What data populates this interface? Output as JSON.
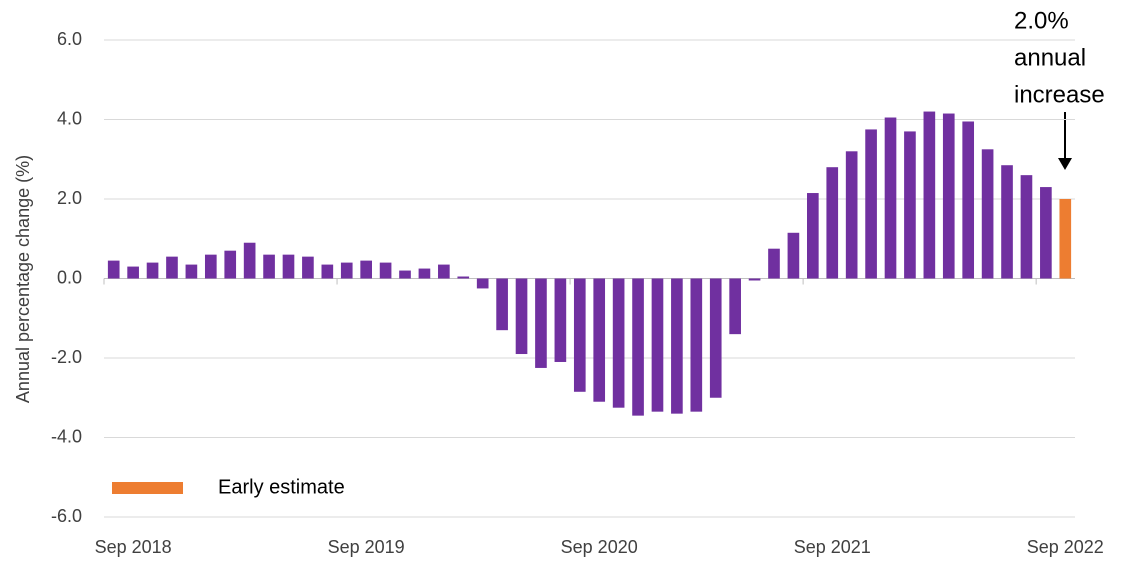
{
  "chart_data": {
    "type": "bar",
    "y_label": "Annual percentage change (%)",
    "categories": [
      null,
      "Sep 2018",
      null,
      null,
      null,
      null,
      null,
      null,
      null,
      null,
      null,
      null,
      null,
      "Sep 2019",
      null,
      null,
      null,
      null,
      null,
      null,
      null,
      null,
      null,
      null,
      null,
      "Sep 2020",
      null,
      null,
      null,
      null,
      null,
      null,
      null,
      null,
      null,
      null,
      null,
      "Sep 2021",
      null,
      null,
      null,
      null,
      null,
      null,
      null,
      null,
      null,
      null,
      null,
      "Sep 2022"
    ],
    "series": [
      {
        "color": "#7030a0",
        "values": [
          0.45,
          0.3,
          0.4,
          0.55,
          0.35,
          0.6,
          0.7,
          0.9,
          0.6,
          0.6,
          0.55,
          0.35,
          0.4,
          0.45,
          0.4,
          0.2,
          0.25,
          0.35,
          0.05,
          -0.25,
          -1.3,
          -1.9,
          -2.25,
          -2.1,
          -2.85,
          -3.1,
          -3.25,
          -3.45,
          -3.35,
          -3.4,
          -3.35,
          -3.0,
          -1.4,
          -0.05,
          0.75,
          1.15,
          2.15,
          2.8,
          3.2,
          3.75,
          4.05,
          3.7,
          4.2,
          4.15,
          3.95,
          3.25,
          2.85,
          2.6,
          2.3,
          null
        ]
      },
      {
        "name": "Early estimate",
        "color": "#ed7d31",
        "values": [
          null,
          null,
          null,
          null,
          null,
          null,
          null,
          null,
          null,
          null,
          null,
          null,
          null,
          null,
          null,
          null,
          null,
          null,
          null,
          null,
          null,
          null,
          null,
          null,
          null,
          null,
          null,
          null,
          null,
          null,
          null,
          null,
          null,
          null,
          null,
          null,
          null,
          null,
          null,
          null,
          null,
          null,
          null,
          null,
          null,
          null,
          null,
          null,
          null,
          2.0
        ]
      }
    ],
    "ylim": [
      -6,
      6
    ],
    "yticks": [
      {
        "value": -6,
        "label": "-6.0"
      },
      {
        "value": -4,
        "label": "-4.0"
      },
      {
        "value": -2,
        "label": "-2.0"
      },
      {
        "value": 0,
        "label": "0.0"
      },
      {
        "value": 2,
        "label": "2.0"
      },
      {
        "value": 4,
        "label": "4.0"
      },
      {
        "value": 6,
        "label": "6.0"
      }
    ],
    "grid": true,
    "annotation": [
      "2.0%",
      "annual",
      "increase"
    ]
  }
}
